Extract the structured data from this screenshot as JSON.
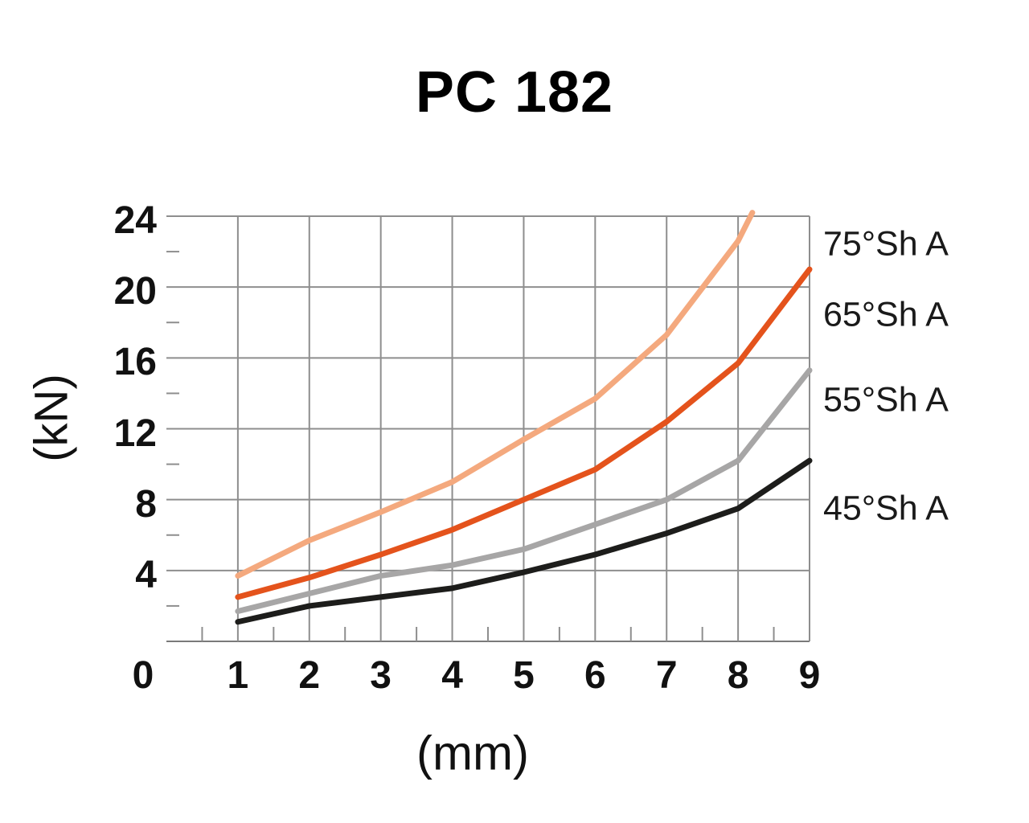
{
  "title": "PC 182",
  "axes": {
    "y_unit_label": "(kN)",
    "x_unit_label": "(mm)",
    "origin_label": "0"
  },
  "colors": {
    "grid": "#8e8e8e",
    "axis": "#7a7a7a",
    "text": "#111111",
    "background": "#ffffff"
  },
  "chart_data": {
    "type": "line",
    "title": "PC 182",
    "xlabel": "(mm)",
    "ylabel": "(kN)",
    "xlim": [
      0,
      9
    ],
    "ylim": [
      0,
      24
    ],
    "x_major_ticks": [
      0,
      1,
      2,
      3,
      4,
      5,
      6,
      7,
      8,
      9
    ],
    "x_minor_tick_step": 0.5,
    "y_major_ticks": [
      4,
      8,
      12,
      16,
      20,
      24
    ],
    "y_minor_ticks": [
      2,
      6,
      10,
      14,
      18,
      22
    ],
    "grid": "major gridlines on, minor ticks as stubs",
    "legend_position": "right",
    "series": [
      {
        "name": "75°Sh A",
        "color": "#F4A97E",
        "x": [
          1,
          2,
          3,
          4,
          5,
          6,
          7,
          8,
          8.2
        ],
        "y": [
          3.7,
          5.7,
          7.3,
          9.0,
          11.4,
          13.7,
          17.3,
          22.6,
          24.2
        ],
        "legend_y_kN": 22.4
      },
      {
        "name": "65°Sh A",
        "color": "#E4531C",
        "x": [
          1,
          2,
          3,
          4,
          5,
          6,
          7,
          8,
          9
        ],
        "y": [
          2.5,
          3.6,
          4.9,
          6.3,
          8.0,
          9.7,
          12.4,
          15.7,
          21.0
        ],
        "legend_y_kN": 18.4
      },
      {
        "name": "55°Sh A",
        "color": "#A7A6A6",
        "x": [
          1,
          2,
          3,
          4,
          5,
          6,
          7,
          8,
          9
        ],
        "y": [
          1.7,
          2.7,
          3.7,
          4.3,
          5.2,
          6.6,
          8.0,
          10.2,
          15.3
        ],
        "legend_y_kN": 13.6
      },
      {
        "name": "45°Sh A",
        "color": "#1D1D1B",
        "x": [
          1,
          2,
          3,
          4,
          5,
          6,
          7,
          8,
          9
        ],
        "y": [
          1.1,
          2.0,
          2.5,
          3.0,
          3.9,
          4.9,
          6.1,
          7.5,
          10.2
        ],
        "legend_y_kN": 7.5
      }
    ]
  }
}
